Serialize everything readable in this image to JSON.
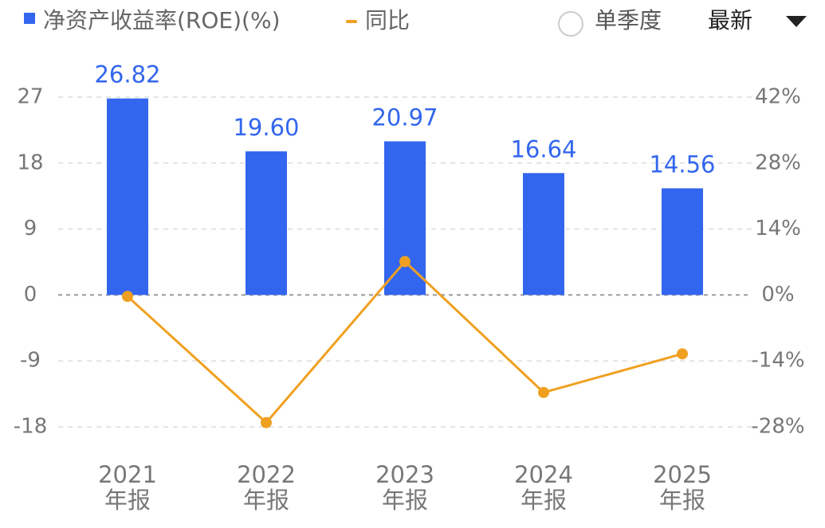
{
  "chart_data": {
    "type": "bar-line",
    "categories": [
      [
        "2021",
        "年报"
      ],
      [
        "2022",
        "年报"
      ],
      [
        "2023",
        "年报"
      ],
      [
        "2024",
        "年报"
      ],
      [
        "2025",
        "年报"
      ]
    ],
    "series": [
      {
        "name": "净资产收益率(ROE)(%)",
        "type": "bar",
        "color": "#3366ee",
        "values": [
          26.82,
          19.6,
          20.97,
          16.64,
          14.56
        ],
        "value_labels": [
          "26.82",
          "19.60",
          "20.97",
          "16.64",
          "14.56"
        ]
      },
      {
        "name": "同比",
        "type": "line",
        "axis": "y2",
        "color": "#f0a020",
        "values": [
          -0.3,
          -27.1,
          7.1,
          -20.7,
          -12.5
        ]
      }
    ],
    "ylim": [
      -18,
      27
    ],
    "yticks": [
      -18,
      -9,
      0,
      9,
      18,
      27
    ],
    "y2lim": [
      -28,
      42
    ],
    "y2ticks": [
      {
        "value": -28,
        "label": "-28%"
      },
      {
        "value": -14,
        "label": "-14%"
      },
      {
        "value": 0,
        "label": "0%"
      },
      {
        "value": 14,
        "label": "14%"
      },
      {
        "value": 28,
        "label": "28%"
      },
      {
        "value": 42,
        "label": "42%"
      }
    ],
    "grid": true,
    "controls": {
      "option": "单季度",
      "dropdown": "最新"
    }
  }
}
